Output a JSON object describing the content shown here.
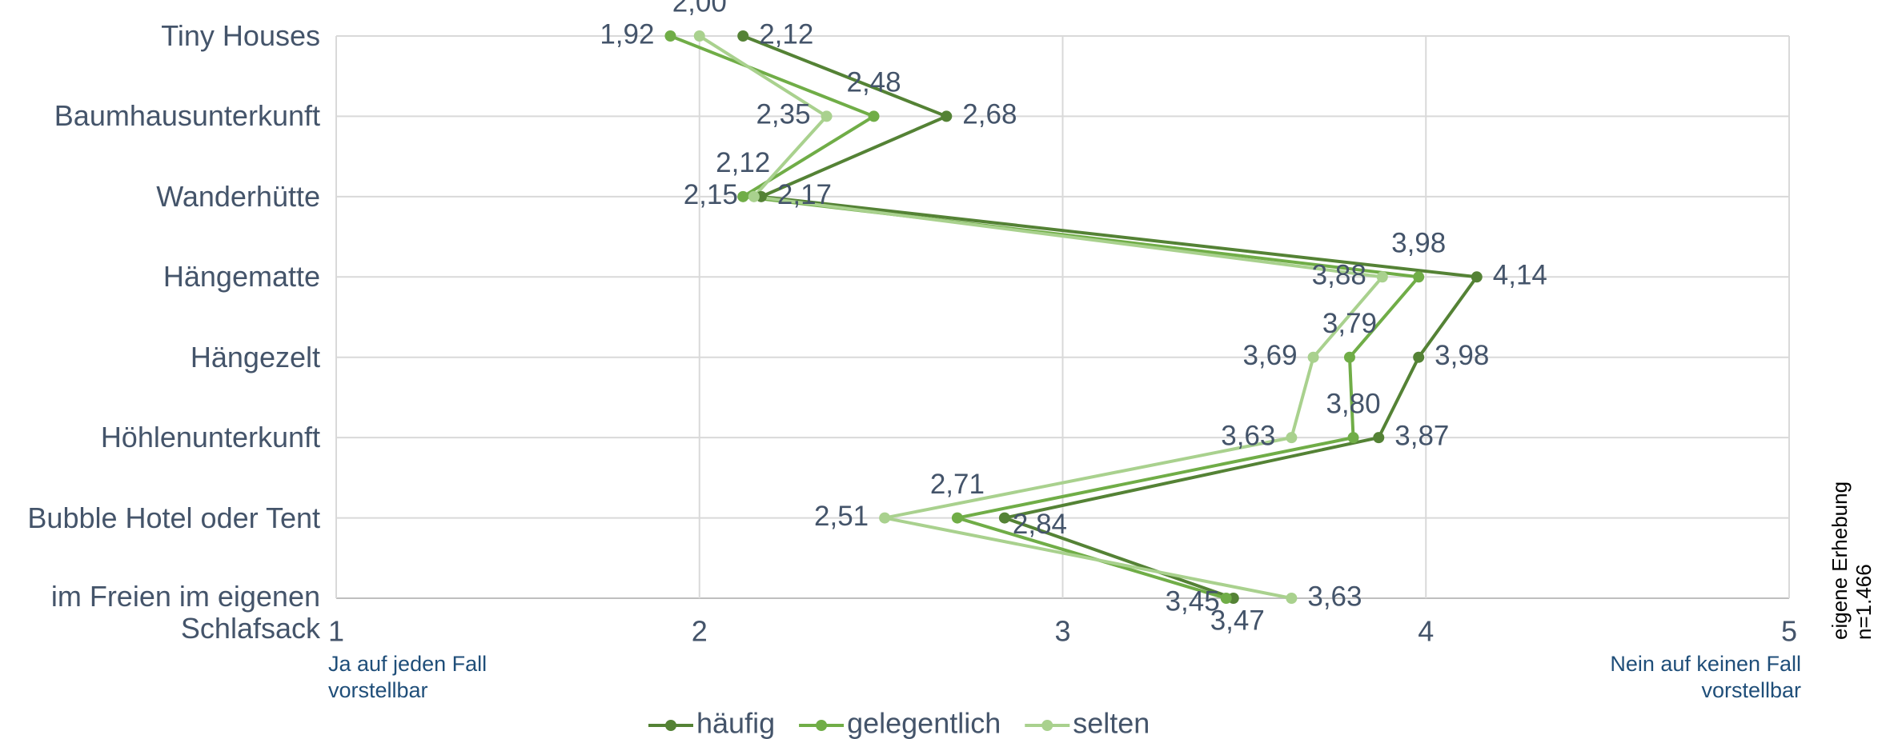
{
  "chart_data": {
    "type": "line",
    "categories": [
      "Tiny Houses",
      "Baumhausunterkunft",
      "Wanderhütte",
      "Hängematte",
      "Hängezelt",
      "Höhlenunterkunft",
      "Bubble Hotel oder Tent",
      "im Freien im eigenen Schlafsack"
    ],
    "series": [
      {
        "name": "häufig",
        "color": "#548235",
        "values": [
          2.12,
          2.68,
          2.17,
          4.14,
          3.98,
          3.87,
          2.84,
          3.47
        ],
        "value_labels": [
          "2,12",
          "2,68",
          "2,17",
          "4,14",
          "3,98",
          "3,87",
          "2,84",
          "3,47"
        ]
      },
      {
        "name": "gelegentlich",
        "color": "#70ad47",
        "values": [
          1.92,
          2.48,
          2.12,
          3.98,
          3.79,
          3.8,
          2.71,
          3.45
        ],
        "value_labels": [
          "1,92",
          "2,48",
          "2,12",
          "3,98",
          "3,79",
          "3,80",
          "2,71",
          "3,45"
        ]
      },
      {
        "name": "selten",
        "color": "#a9d18e",
        "values": [
          2.0,
          2.35,
          2.15,
          3.88,
          3.69,
          3.63,
          2.51,
          3.63
        ],
        "value_labels": [
          "2,00",
          "2,35",
          "2,15",
          "3,88",
          "3,69",
          "3,63",
          "2,51",
          "3,63"
        ]
      }
    ],
    "xlim": [
      1,
      5
    ],
    "xticks": [
      1,
      2,
      3,
      4,
      5
    ],
    "grid": true,
    "legend": "bottom",
    "annotations": {
      "left": "Ja auf jeden Fall vorstellbar",
      "right": "Nein auf keinen Fall vorstellbar",
      "source": "eigene Erhebung",
      "n": "n=1.466"
    }
  }
}
